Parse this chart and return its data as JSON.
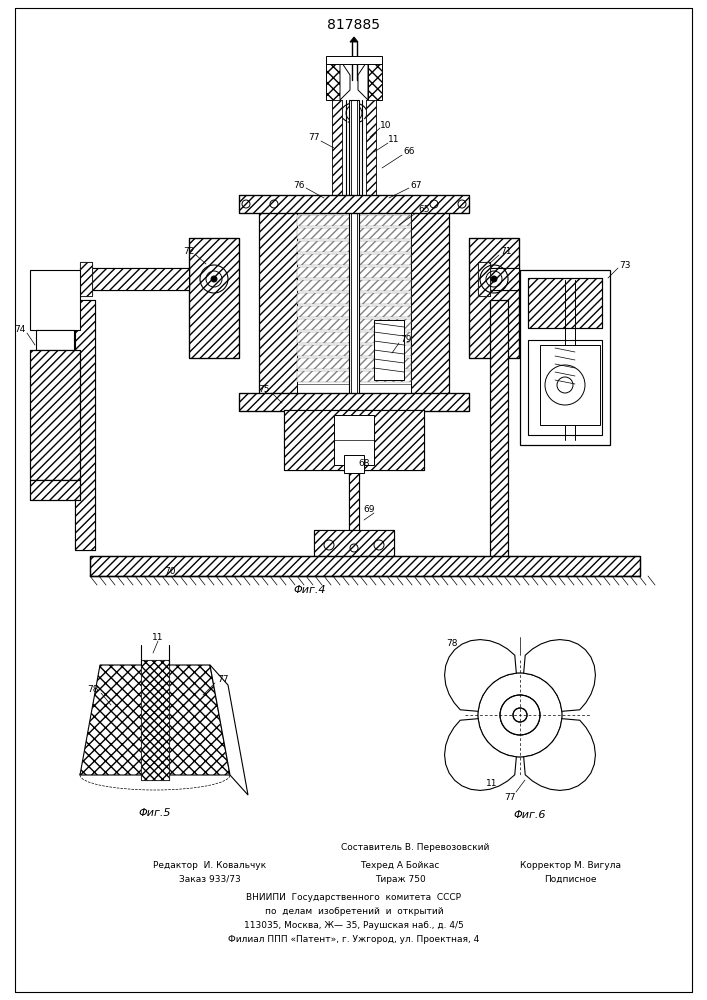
{
  "patent_number": "817885",
  "fig4_label": "Φиг.4",
  "fig5_label": "Φиг.5",
  "fig6_label": "Φиг.6",
  "bg_color": "#ffffff",
  "line_color": "#000000",
  "footer_col1": "Редактор  И. Ковальчук",
  "footer_col1b": "Заказ 933/73",
  "footer_col2": "Техред А Бойкас",
  "footer_col2b": "Тираж 750",
  "footer_col3": "Корректор М. Вигула",
  "footer_col3b": "Подписное",
  "footer_sestavitel": "Составитель В. Перевозовский",
  "footer_vniip1": "ВНИИПИ  Государственного  комитета  СССР",
  "footer_vniip2": "по  делам  изобретений  и  открытий",
  "footer_addr1": "113035, Москва, Ж— 35, Раушская наб., д. 4/5",
  "footer_addr2": "Филиал ППП «Патент», г. Ужгород, ул. Проектная, 4"
}
